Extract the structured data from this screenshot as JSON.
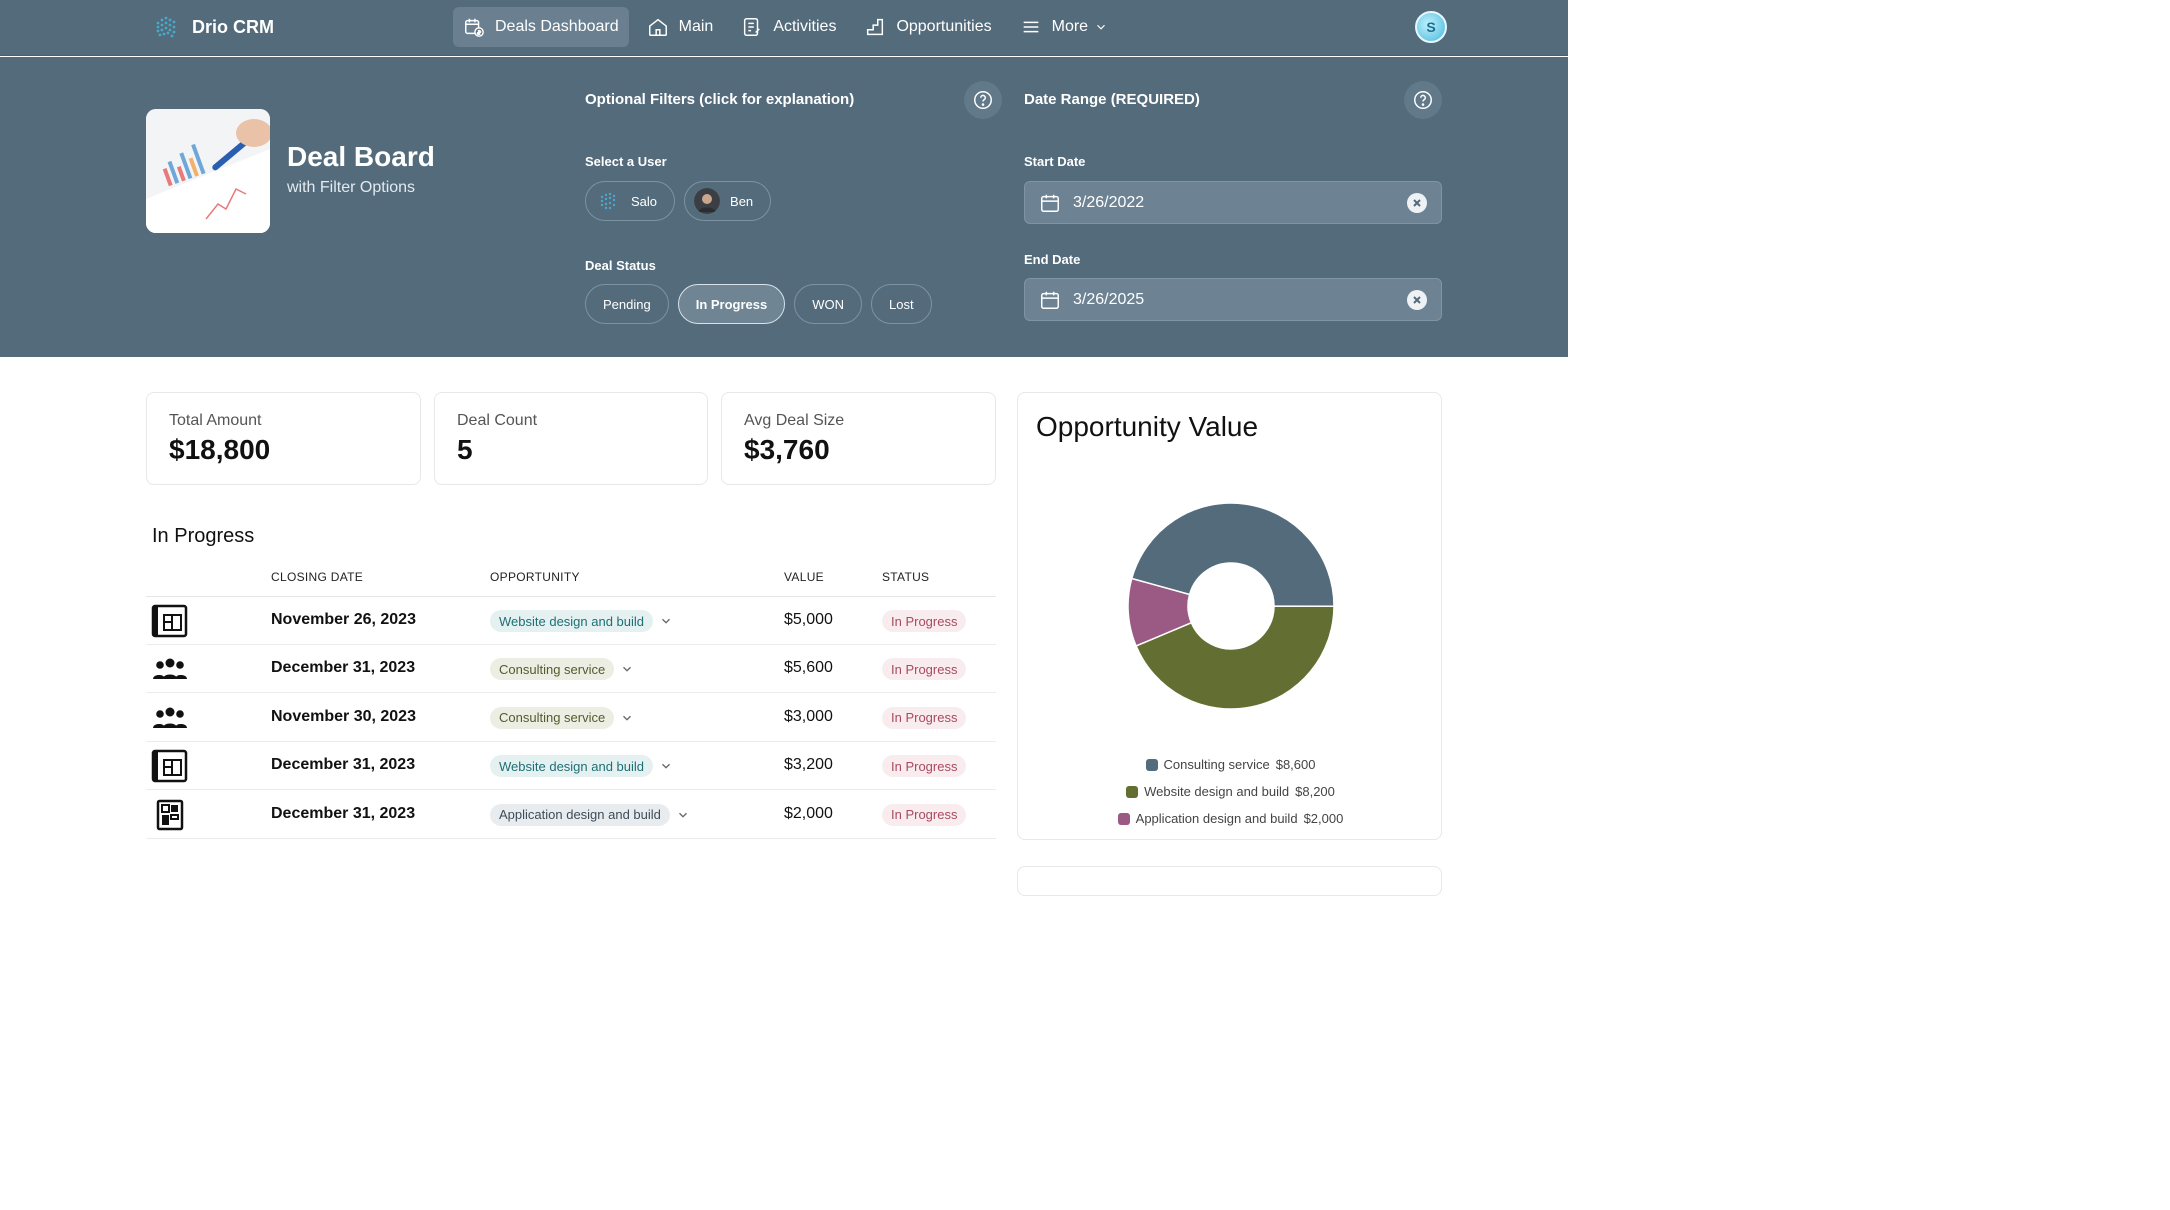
{
  "app": {
    "name": "Drio CRM",
    "avatar_initial": "S"
  },
  "nav": {
    "items": [
      {
        "label": "Deals Dashboard",
        "icon": "calendar-dollar-icon",
        "active": true
      },
      {
        "label": "Main",
        "icon": "home-icon",
        "active": false
      },
      {
        "label": "Activities",
        "icon": "activity-list-icon",
        "active": false
      },
      {
        "label": "Opportunities",
        "icon": "chart-step-icon",
        "active": false
      },
      {
        "label": "More",
        "icon": "menu-icon",
        "active": false
      }
    ]
  },
  "hero": {
    "title": "Deal Board",
    "subtitle": "with Filter Options"
  },
  "filters": {
    "heading": "Optional Filters (click for explanation)",
    "user_label": "Select a User",
    "users": [
      "Salo",
      "Ben"
    ],
    "status_label": "Deal Status",
    "statuses": [
      "Pending",
      "In Progress",
      "WON",
      "Lost"
    ],
    "selected_status": "In Progress"
  },
  "date_range": {
    "heading": "Date Range (REQUIRED)",
    "start_label": "Start Date",
    "start_value": "3/26/2022",
    "end_label": "End Date",
    "end_value": "3/26/2025"
  },
  "stats": [
    {
      "label": "Total Amount",
      "value": "$18,800"
    },
    {
      "label": "Deal Count",
      "value": "5"
    },
    {
      "label": "Avg Deal Size",
      "value": "$3,760"
    }
  ],
  "table": {
    "title": "In Progress",
    "columns": [
      "CLOSING DATE",
      "OPPORTUNITY",
      "VALUE",
      "STATUS"
    ],
    "rows": [
      {
        "icon": "blueprint-icon",
        "date": "November 26, 2023",
        "opportunity": "Website design and build",
        "kind": "web",
        "value": "$5,000",
        "status": "In Progress"
      },
      {
        "icon": "team-icon",
        "date": "December 31, 2023",
        "opportunity": "Consulting service",
        "kind": "consult",
        "value": "$5,600",
        "status": "In Progress"
      },
      {
        "icon": "team-icon",
        "date": "November 30, 2023",
        "opportunity": "Consulting service",
        "kind": "consult",
        "value": "$3,000",
        "status": "In Progress"
      },
      {
        "icon": "blueprint-icon",
        "date": "December 31, 2023",
        "opportunity": "Website design and build",
        "kind": "web",
        "value": "$3,200",
        "status": "In Progress"
      },
      {
        "icon": "app-grid-icon",
        "date": "December 31, 2023",
        "opportunity": "Application design and build",
        "kind": "app",
        "value": "$2,000",
        "status": "In Progress"
      }
    ]
  },
  "chart_data": {
    "type": "pie",
    "title": "Opportunity Value",
    "categories": [
      "Consulting service",
      "Website design and build",
      "Application design and build"
    ],
    "values": [
      8600,
      8200,
      2000
    ],
    "labels": [
      "$8,600",
      "$8,200",
      "$2,000"
    ],
    "colors": [
      "#536b7b",
      "#636f32",
      "#9b5a84"
    ],
    "legend": "bottom"
  }
}
